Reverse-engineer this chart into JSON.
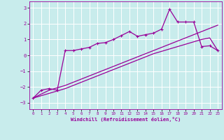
{
  "xlabel": "Windchill (Refroidissement éolien,°C)",
  "background_color": "#c8ecec",
  "grid_color": "#aadddd",
  "line_color": "#990099",
  "x_ticks": [
    0,
    1,
    2,
    3,
    4,
    5,
    6,
    7,
    8,
    9,
    10,
    11,
    12,
    13,
    14,
    15,
    16,
    17,
    18,
    19,
    20,
    21,
    22,
    23
  ],
  "y_ticks": [
    -3,
    -2,
    -1,
    0,
    1,
    2,
    3
  ],
  "ylim": [
    -3.4,
    3.4
  ],
  "xlim": [
    -0.5,
    23.5
  ],
  "line1_x": [
    0,
    1,
    2,
    3,
    4,
    5,
    6,
    7,
    8,
    9,
    10,
    11,
    12,
    13,
    14,
    15,
    16,
    17,
    18,
    19,
    20,
    21,
    22,
    23
  ],
  "line1_y": [
    -2.7,
    -2.45,
    -2.2,
    -2.05,
    -1.9,
    -1.7,
    -1.5,
    -1.3,
    -1.1,
    -0.9,
    -0.7,
    -0.5,
    -0.3,
    -0.1,
    0.1,
    0.3,
    0.5,
    0.7,
    0.9,
    1.1,
    1.3,
    1.5,
    1.7,
    1.9
  ],
  "line2_x": [
    0,
    1,
    2,
    3,
    4,
    5,
    6,
    7,
    8,
    9,
    10,
    11,
    12,
    13,
    14,
    15,
    16,
    17,
    18,
    19,
    20,
    21,
    22,
    23
  ],
  "line2_y": [
    -2.7,
    -2.55,
    -2.4,
    -2.25,
    -2.1,
    -1.9,
    -1.7,
    -1.5,
    -1.3,
    -1.1,
    -0.9,
    -0.7,
    -0.5,
    -0.3,
    -0.1,
    0.1,
    0.25,
    0.4,
    0.55,
    0.7,
    0.85,
    1.0,
    1.1,
    0.3
  ],
  "line3_x": [
    0,
    1,
    2,
    3,
    4,
    5,
    6,
    7,
    8,
    9,
    10,
    11,
    12,
    13,
    14,
    15,
    16,
    17,
    18,
    19,
    20,
    21,
    22,
    23
  ],
  "line3_y": [
    -2.7,
    -2.2,
    -2.1,
    -2.2,
    0.3,
    0.3,
    0.4,
    0.5,
    0.75,
    0.8,
    1.0,
    1.25,
    1.5,
    1.2,
    1.3,
    1.4,
    1.65,
    2.9,
    2.1,
    2.1,
    2.1,
    0.55,
    0.6,
    0.3
  ]
}
